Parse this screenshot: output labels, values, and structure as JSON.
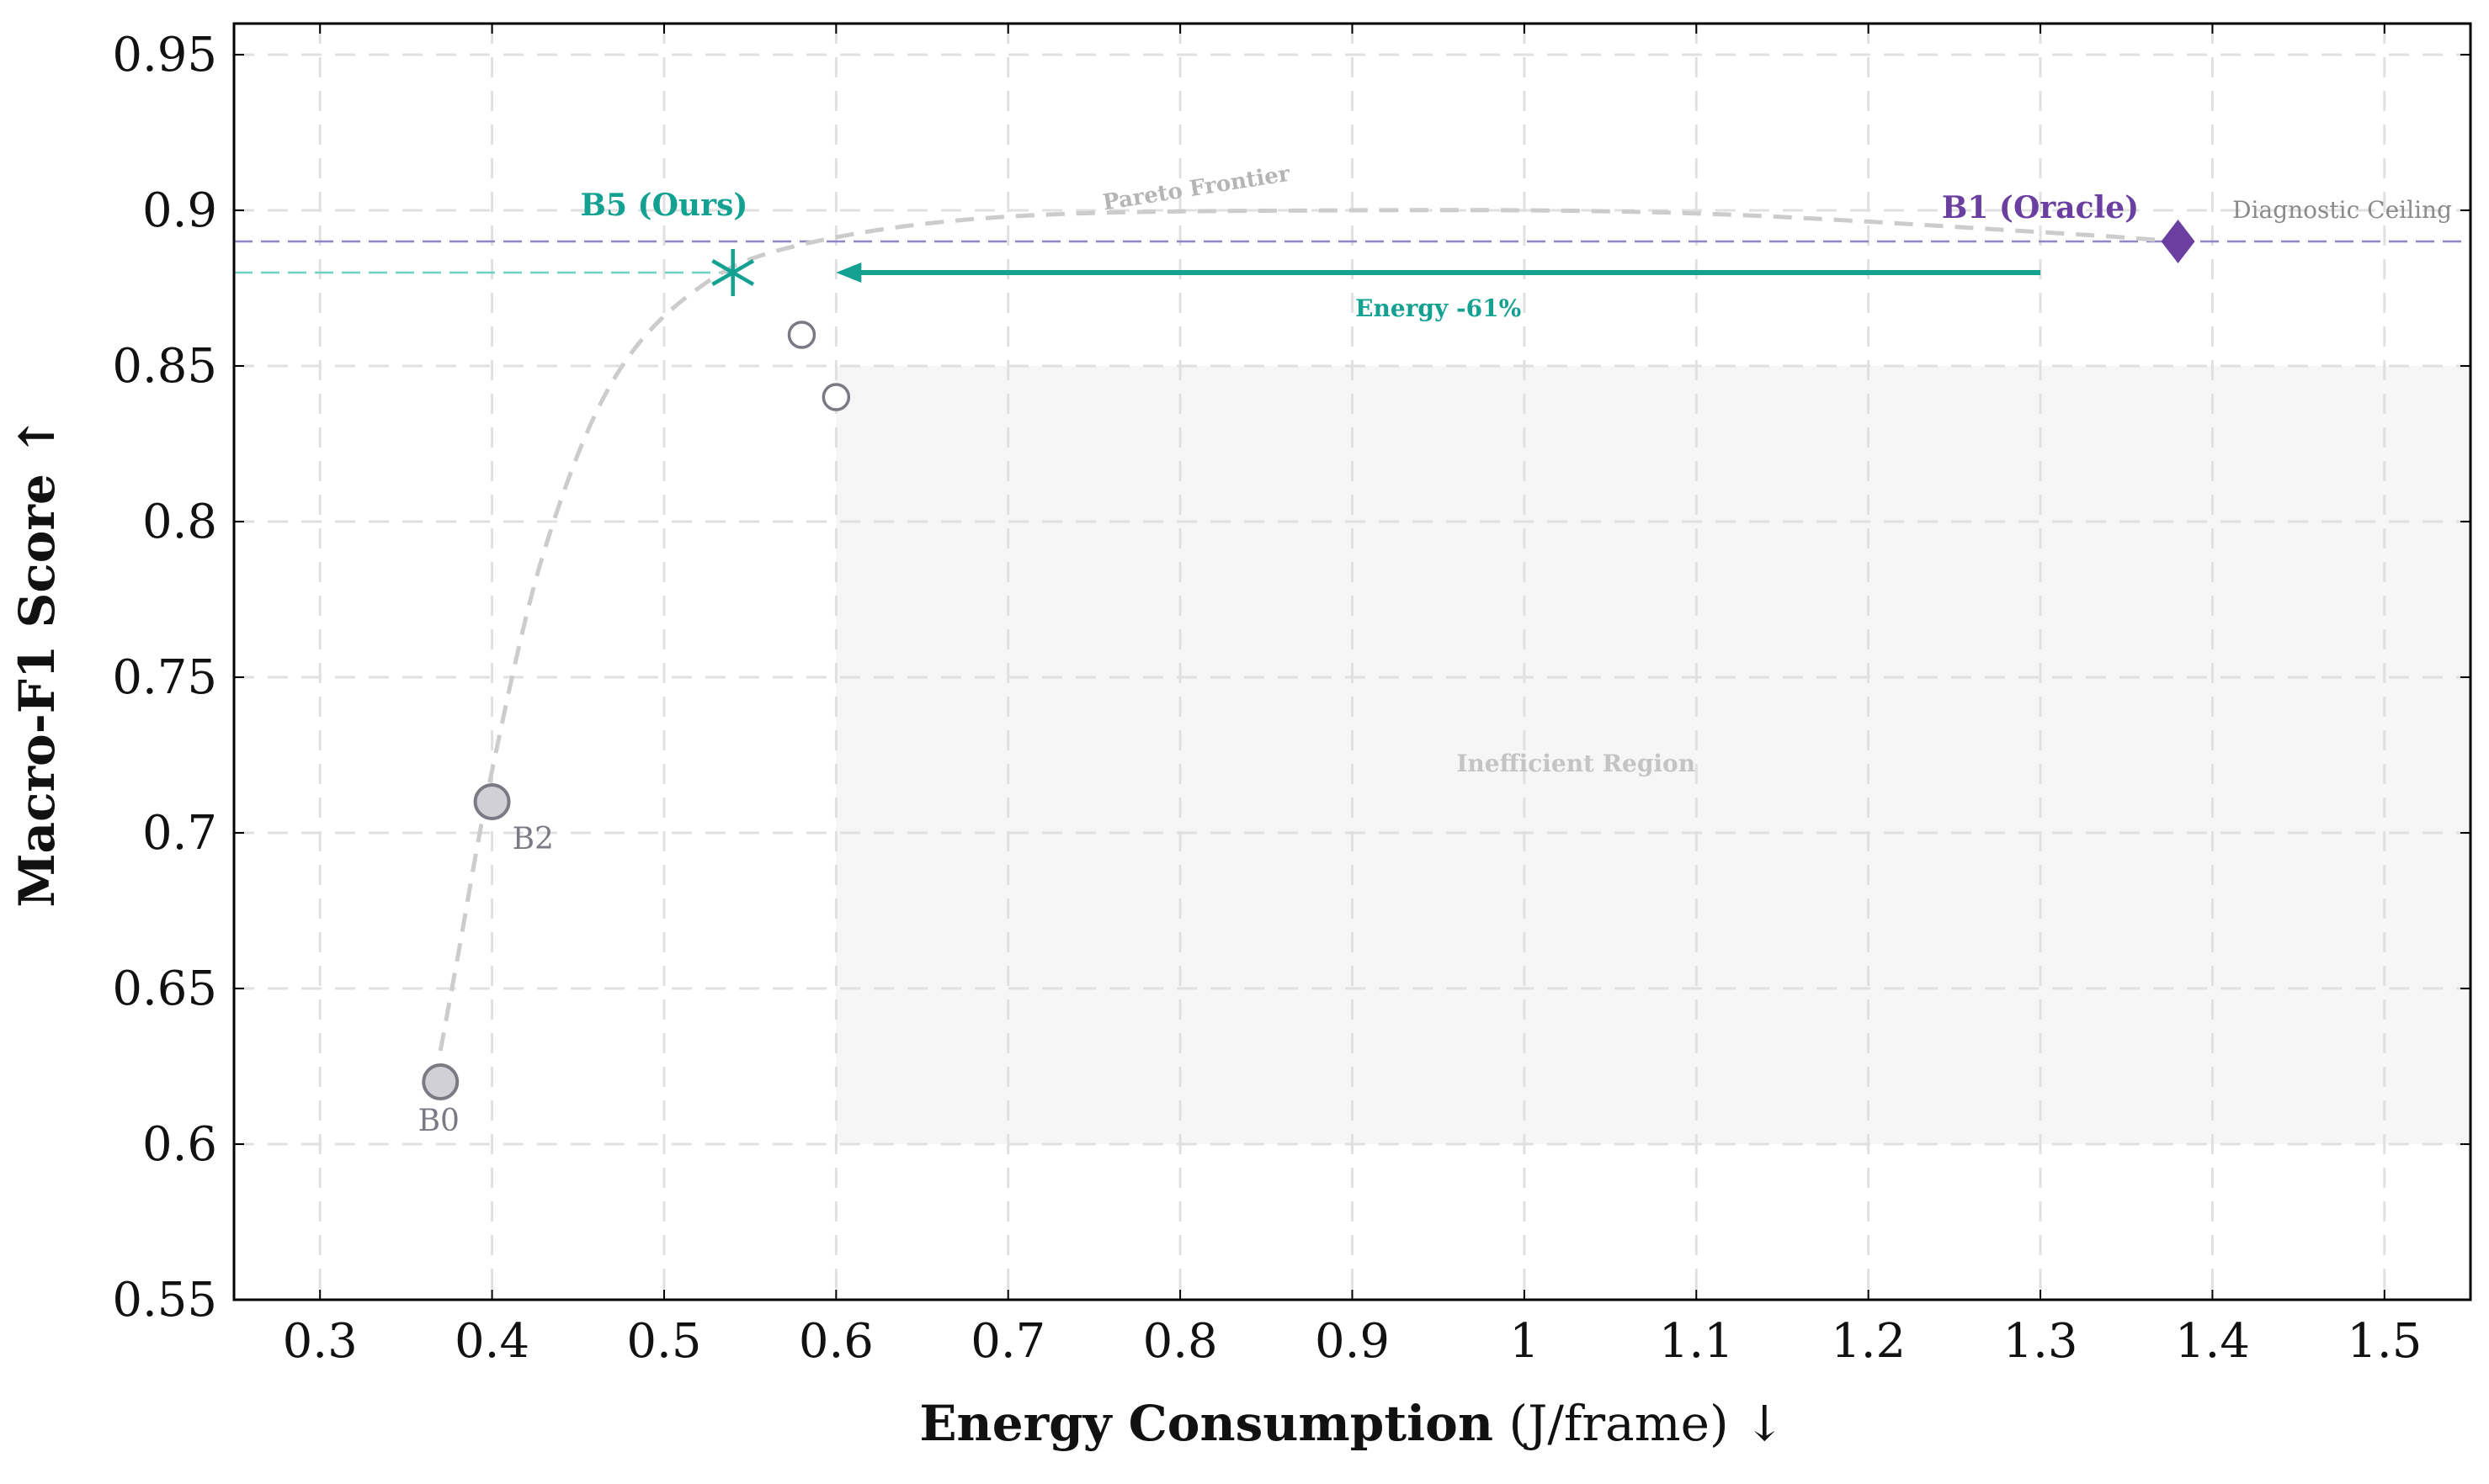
{
  "chart_data": {
    "type": "scatter",
    "xlabel_bold": "Energy Consumption",
    "xlabel_rest": " (J/frame) ↓",
    "ylabel": "Macro-F1 Score ↑",
    "xlim": [
      0.25,
      1.55
    ],
    "ylim": [
      0.55,
      0.96
    ],
    "x_ticks": [
      0.3,
      0.4,
      0.5,
      0.6,
      0.7,
      0.8,
      0.9,
      1,
      1.1,
      1.2,
      1.3,
      1.4,
      1.5
    ],
    "x_tick_labels": [
      "0.3",
      "0.4",
      "0.5",
      "0.6",
      "0.7",
      "0.8",
      "0.9",
      "1",
      "1.1",
      "1.2",
      "1.3",
      "1.4",
      "1.5"
    ],
    "y_ticks": [
      0.55,
      0.6,
      0.65,
      0.7,
      0.75,
      0.8,
      0.85,
      0.9,
      0.95
    ],
    "y_tick_labels": [
      "0.55",
      "0.6",
      "0.65",
      "0.7",
      "0.75",
      "0.8",
      "0.85",
      "0.9",
      "0.95"
    ],
    "grid": true,
    "points": [
      {
        "label": "B0",
        "x": 0.37,
        "y": 0.62,
        "marker": "circle-filled",
        "color": "#d0d0d6",
        "stroke": "#7a7a85"
      },
      {
        "label": "B2",
        "x": 0.4,
        "y": 0.71,
        "marker": "circle-filled",
        "color": "#d0d0d6",
        "stroke": "#7a7a85"
      },
      {
        "label": "",
        "x": 0.58,
        "y": 0.86,
        "marker": "circle-open",
        "color": "#ffffff",
        "stroke": "#7a7a85"
      },
      {
        "label": "",
        "x": 0.6,
        "y": 0.84,
        "marker": "circle-open",
        "color": "#ffffff",
        "stroke": "#7a7a85"
      },
      {
        "label": "B5 (Ours)",
        "x": 0.54,
        "y": 0.88,
        "marker": "star",
        "color": "#14a191"
      },
      {
        "label": "B1 (Oracle)",
        "x": 1.38,
        "y": 0.89,
        "marker": "diamond",
        "color": "#6a3fa0"
      }
    ],
    "pareto_frontier": {
      "label": "Pareto Frontier",
      "color": "#cccccc",
      "x": [
        0.37,
        0.38,
        0.4,
        0.43,
        0.47,
        0.52,
        0.58,
        0.7,
        0.9,
        1.1,
        1.3,
        1.38
      ],
      "y": [
        0.63,
        0.66,
        0.72,
        0.79,
        0.845,
        0.875,
        0.889,
        0.898,
        0.9,
        0.899,
        0.893,
        0.89
      ]
    },
    "reference_lines": [
      {
        "label": "Diagnostic Ceiling",
        "y": 0.89,
        "x_from": 0.25,
        "x_to": 1.55,
        "color": "#8f86c4"
      },
      {
        "label": "",
        "y": 0.88,
        "x_from": 0.25,
        "x_to": 0.54,
        "color": "#6fd0c2"
      }
    ],
    "arrow": {
      "label": "Energy -61%",
      "from": [
        1.3,
        0.88
      ],
      "to": [
        0.6,
        0.88
      ],
      "color": "#14a191"
    },
    "region": {
      "label": "Inefficient Region",
      "x": [
        0.6,
        1.55
      ],
      "y": [
        0.6,
        0.85
      ],
      "color": "#f6f6f6"
    }
  }
}
